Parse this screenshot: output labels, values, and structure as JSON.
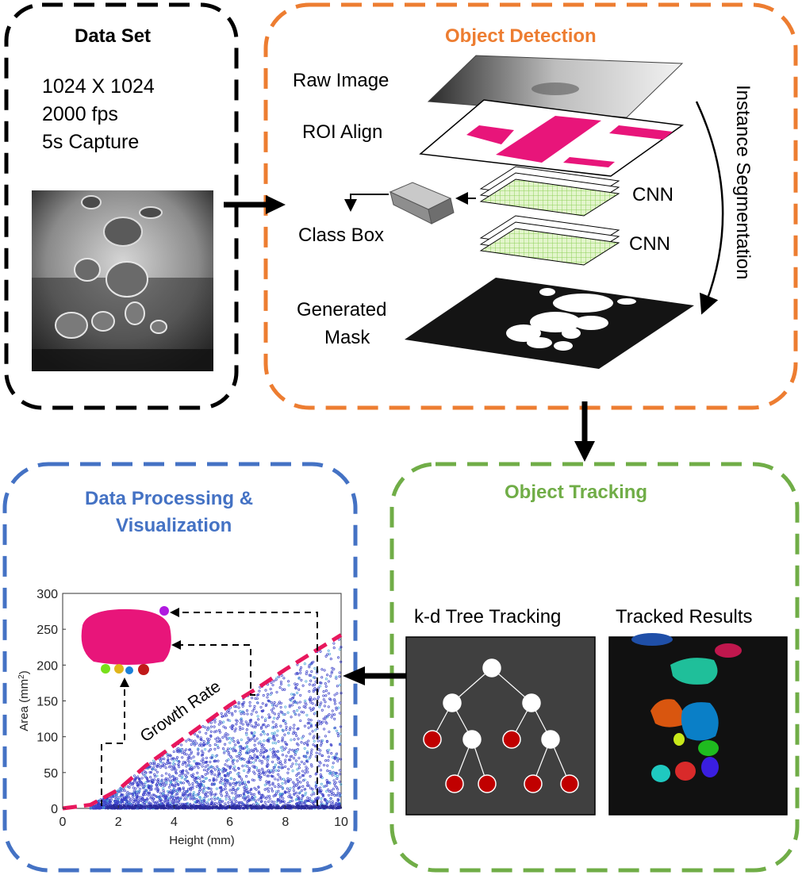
{
  "colors": {
    "dataset": "#000000",
    "detection": "#ed7d31",
    "tracking": "#70ad47",
    "processing": "#4472c4",
    "roi_box": "#e8157a",
    "cnn_grid": "#c6e8a0",
    "growth_line": "#e8175d",
    "scatter": "#3a3fc8",
    "tree_node_leaf": "#c00000"
  },
  "dataset": {
    "title": "Data Set",
    "specs": [
      "1024 X 1024",
      "2000 fps",
      "5s Capture"
    ]
  },
  "detection": {
    "title": "Object Detection",
    "raw_image": "Raw Image",
    "roi_align": "ROI Align",
    "class_box": "Class Box",
    "cnn_1": "CNN",
    "cnn_2": "CNN",
    "generated_mask_1": "Generated",
    "generated_mask_2": "Mask",
    "instance_segmentation": "Instance Segmentation"
  },
  "tracking": {
    "title": "Object Tracking",
    "kd_tree": "k-d Tree Tracking",
    "tracked_results": "Tracked Results"
  },
  "processing": {
    "title_line1": "Data Processing &",
    "title_line2": "Visualization",
    "growth_rate": "Growth Rate"
  },
  "chart_data": {
    "type": "scatter",
    "xlabel": "Height (mm)",
    "ylabel": "Area (mm2)",
    "xlim": [
      0,
      10
    ],
    "ylim": [
      0,
      300
    ],
    "xticks": [
      "0",
      "2",
      "4",
      "6",
      "8",
      "10"
    ],
    "yticks": [
      "0",
      "50",
      "100",
      "150",
      "200",
      "250",
      "300"
    ],
    "growth_line": {
      "x": [
        0,
        1,
        2,
        3,
        4,
        5,
        6,
        7,
        8,
        9,
        10
      ],
      "y": [
        0,
        5,
        26,
        60,
        88,
        116,
        144,
        168,
        194,
        218,
        242
      ]
    },
    "annotations": [
      "Growth Rate"
    ]
  }
}
